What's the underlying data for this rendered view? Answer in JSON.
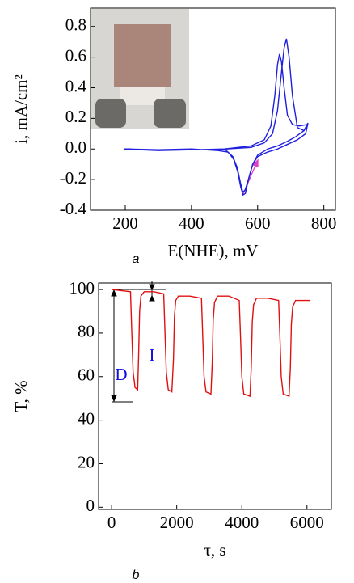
{
  "chart_data": [
    {
      "type": "line",
      "xlabel": "E(NHE), mV",
      "ylabel": "i, mA/cm²",
      "caption": "a",
      "xlim": [
        95,
        835
      ],
      "xticks": [
        200,
        400,
        600,
        800
      ],
      "ylim": [
        -0.4,
        0.92
      ],
      "yticks": [
        -0.4,
        -0.2,
        {
          "value": 0,
          "label": "0.0"
        },
        0.2,
        0.4,
        0.6,
        0.8
      ],
      "series": [
        {
          "color": "#1f1fe0",
          "x": [
            195,
            300,
            400,
            500,
            580,
            620,
            645,
            660,
            672,
            680,
            687,
            695,
            705,
            720,
            740,
            752,
            745,
            720,
            690,
            660,
            630,
            600,
            585,
            572,
            562,
            555,
            548,
            538,
            525,
            510,
            480,
            400,
            300,
            200
          ],
          "values": [
            0,
            -0.01,
            -0.005,
            0,
            0.01,
            0.04,
            0.1,
            0.25,
            0.5,
            0.66,
            0.72,
            0.6,
            0.35,
            0.14,
            0.12,
            0.17,
            0.1,
            0.06,
            0.03,
            0.0,
            -0.02,
            -0.05,
            -0.1,
            -0.2,
            -0.27,
            -0.28,
            -0.22,
            -0.12,
            -0.05,
            -0.02,
            -0.01,
            0,
            -0.005,
            0
          ]
        },
        {
          "color": "#1f1fe0",
          "x": [
            500,
            580,
            620,
            640,
            652,
            660,
            666,
            672,
            680,
            690,
            705,
            725,
            750,
            740,
            715,
            690,
            660,
            630,
            600,
            585,
            572,
            563,
            556,
            549,
            540,
            528,
            515,
            500
          ],
          "values": [
            0,
            0.02,
            0.06,
            0.15,
            0.35,
            0.55,
            0.62,
            0.57,
            0.4,
            0.22,
            0.16,
            0.15,
            0.16,
            0.12,
            0.08,
            0.05,
            0.02,
            0.0,
            -0.04,
            -0.1,
            -0.2,
            -0.29,
            -0.3,
            -0.25,
            -0.15,
            -0.07,
            -0.03,
            0
          ]
        }
      ]
    },
    {
      "type": "line",
      "xlabel": "τ, s",
      "ylabel": "T, %",
      "caption": "b",
      "annotations": [
        "D",
        "I"
      ],
      "xlim": [
        -400,
        6750
      ],
      "xticks": [
        0,
        2000,
        4000,
        6000
      ],
      "ylim": [
        -1,
        103
      ],
      "yticks": [
        0,
        20,
        40,
        60,
        80,
        100
      ],
      "series": [
        {
          "color": "#e01010",
          "x": [
            0,
            300,
            580,
            620,
            660,
            720,
            800,
            830,
            860,
            900,
            1000,
            1300,
            1600,
            1640,
            1680,
            1740,
            1850,
            1900,
            1930,
            1970,
            2050,
            2400,
            2760,
            2800,
            2840,
            2900,
            3050,
            3090,
            3120,
            3160,
            3250,
            3600,
            3920,
            3960,
            4000,
            4060,
            4250,
            4290,
            4320,
            4360,
            4450,
            4800,
            5130,
            5170,
            5210,
            5270,
            5450,
            5490,
            5520,
            5560,
            5650,
            6000,
            6100
          ],
          "values": [
            100,
            99.5,
            99,
            80,
            62,
            55,
            54,
            70,
            90,
            97,
            99,
            99,
            98,
            80,
            62,
            54,
            53,
            68,
            88,
            95,
            97,
            97,
            96,
            78,
            60,
            53,
            52,
            66,
            86,
            94,
            97,
            97,
            95,
            78,
            60,
            52,
            51,
            65,
            85,
            93,
            96,
            96,
            95,
            78,
            60,
            52,
            51,
            64,
            84,
            92,
            95,
            95,
            95
          ]
        }
      ]
    }
  ]
}
